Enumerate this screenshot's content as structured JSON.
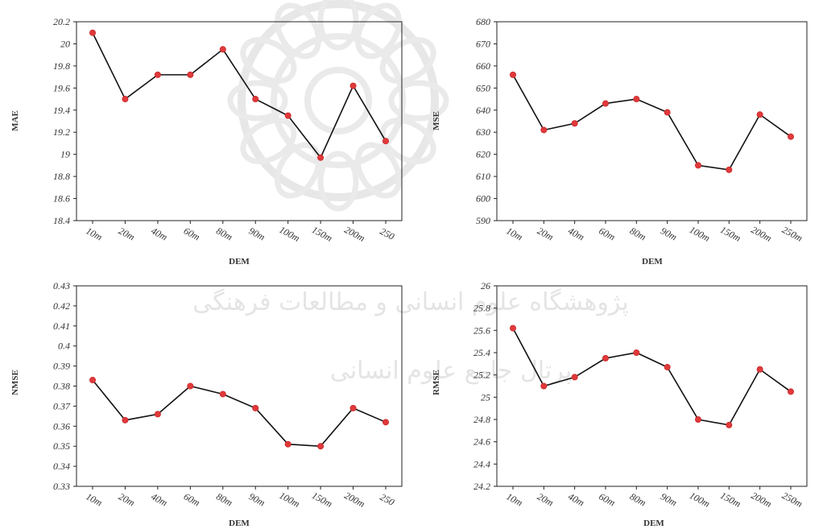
{
  "colors": {
    "line": "#111111",
    "marker": "#e0393b",
    "frame": "#222222",
    "watermark": "#cfcfcf"
  },
  "watermark": {
    "icon": "arabesque-star-logo",
    "lines": [
      "پژوهشگاه علوم انسانی و مطالعات فرهنگی",
      "پرتال جامع علوم انسانی"
    ]
  },
  "chart_data": [
    {
      "type": "line",
      "xlabel": "DEM",
      "ylabel": "MAE",
      "categories": [
        "10m",
        "20m",
        "40m",
        "60m",
        "80m",
        "90m",
        "100m",
        "150m",
        "200m",
        "250m"
      ],
      "category_labels": [
        "10m",
        "20m",
        "40m",
        "60m",
        "80m",
        "90m",
        "100m",
        "150m",
        "200m",
        "250"
      ],
      "yticks": [
        "20.2",
        "20",
        "19.8",
        "19.6",
        "19.4",
        "19.2",
        "19",
        "18.8",
        "18.6",
        "18.4"
      ],
      "ylim": [
        18.4,
        20.2
      ],
      "values": [
        20.1,
        19.5,
        19.72,
        19.72,
        19.95,
        19.5,
        19.35,
        18.97,
        19.62,
        19.12
      ]
    },
    {
      "type": "line",
      "xlabel": "DEM",
      "ylabel": "MSE",
      "categories": [
        "10m",
        "20m",
        "40m",
        "60m",
        "80m",
        "90m",
        "100m",
        "150m",
        "200m",
        "250m"
      ],
      "category_labels": [
        "10m",
        "20m",
        "40m",
        "60m",
        "80m",
        "90m",
        "100m",
        "150m",
        "200m",
        "250m"
      ],
      "yticks": [
        "680",
        "670",
        "660",
        "650",
        "640",
        "630",
        "620",
        "610",
        "600",
        "590"
      ],
      "ylim": [
        590,
        680
      ],
      "values": [
        656,
        631,
        634,
        643,
        645,
        639,
        615,
        613,
        638,
        628
      ]
    },
    {
      "type": "line",
      "xlabel": "DEM",
      "ylabel": "NMSE",
      "categories": [
        "10m",
        "20m",
        "40m",
        "60m",
        "80m",
        "90m",
        "100m",
        "150m",
        "200m",
        "250m"
      ],
      "category_labels": [
        "10m",
        "20m",
        "40m",
        "60m",
        "80m",
        "90m",
        "100m",
        "150m",
        "200m",
        "250"
      ],
      "yticks": [
        "0.43",
        "0.42",
        "0.41",
        "0.4",
        "0.39",
        "0.38",
        "0.37",
        "0.36",
        "0.35",
        "0.34",
        "0.33"
      ],
      "ylim": [
        0.33,
        0.43
      ],
      "values": [
        0.383,
        0.363,
        0.366,
        0.38,
        0.376,
        0.369,
        0.351,
        0.35,
        0.369,
        0.362
      ]
    },
    {
      "type": "line",
      "xlabel": "DEM",
      "ylabel": "RMSE",
      "categories": [
        "10m",
        "20m",
        "40m",
        "60m",
        "80m",
        "90m",
        "100m",
        "150m",
        "200m",
        "250m"
      ],
      "category_labels": [
        "10m",
        "20m",
        "40m",
        "60m",
        "80m",
        "90m",
        "100m",
        "150m",
        "200m",
        "250m"
      ],
      "yticks": [
        "26",
        "25.8",
        "25.6",
        "25.4",
        "25.2",
        "25",
        "24.8",
        "24.6",
        "24.4",
        "24.2"
      ],
      "ylim": [
        24.2,
        26
      ],
      "values": [
        25.62,
        25.1,
        25.18,
        25.35,
        25.4,
        25.27,
        24.8,
        24.75,
        25.25,
        25.05
      ]
    }
  ]
}
